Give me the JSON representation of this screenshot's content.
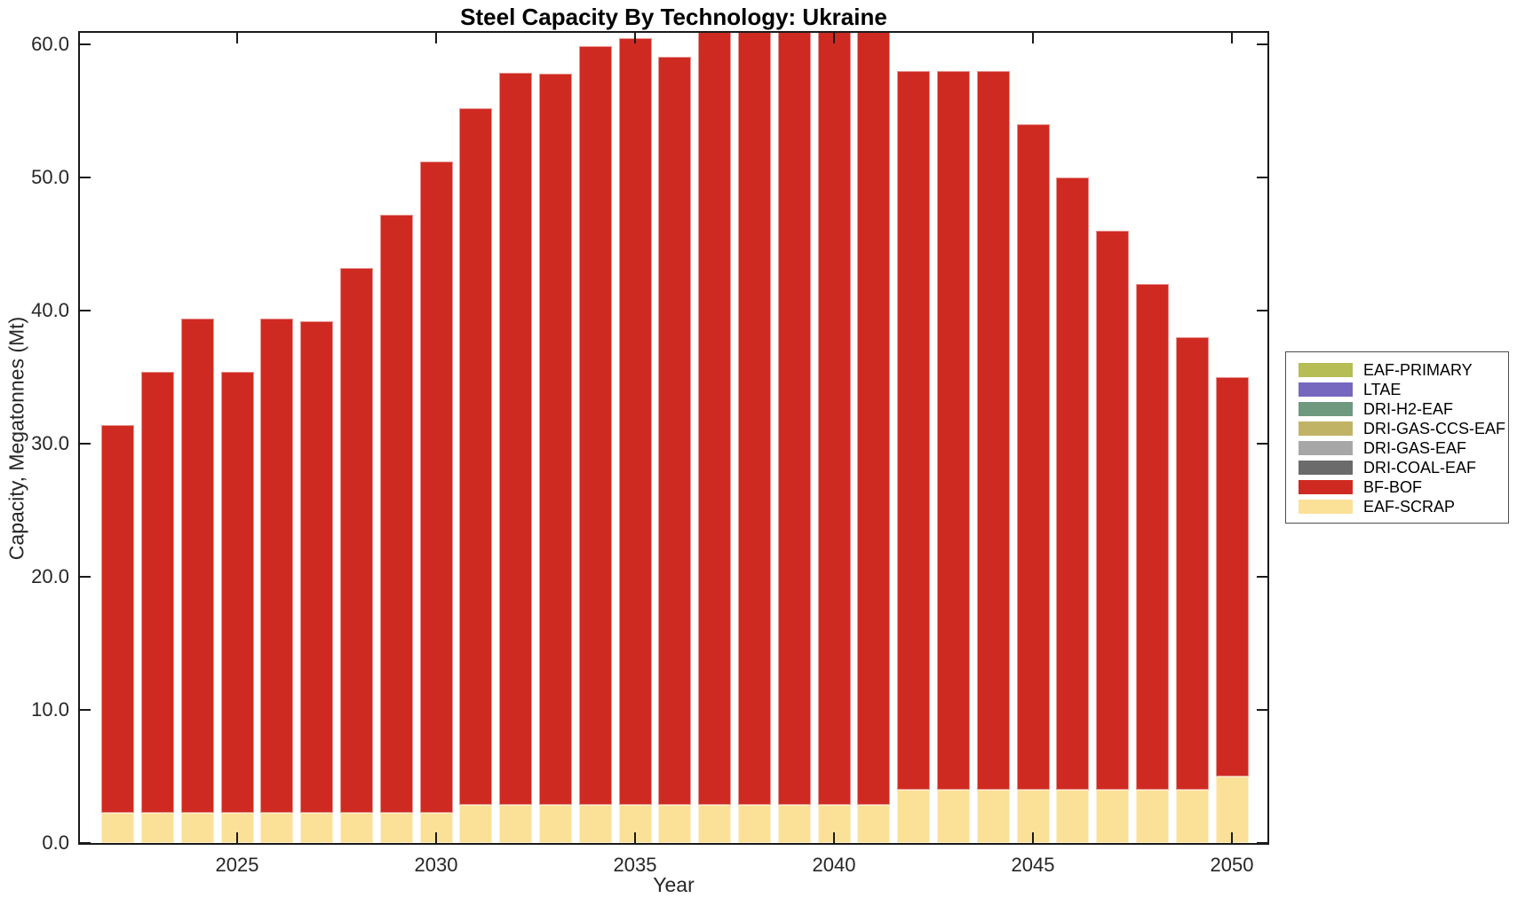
{
  "chart_data": {
    "type": "bar",
    "stacked": true,
    "title": "Steel Capacity By Technology: Ukraine",
    "xlabel": "Year",
    "ylabel": "Capacity, Megatonnes (Mt)",
    "grid": false,
    "legend_position": "outside-right",
    "stack_note": "series listed in legend order top-to-bottom; bars stack in reverse order (EAF-SCRAP bottom, BF-BOF above it)",
    "x": [
      2022,
      2023,
      2024,
      2025,
      2026,
      2027,
      2028,
      2029,
      2030,
      2031,
      2032,
      2033,
      2034,
      2035,
      2036,
      2037,
      2038,
      2039,
      2040,
      2041,
      2042,
      2043,
      2044,
      2045,
      2046,
      2047,
      2048,
      2049,
      2050
    ],
    "x_ticks": [
      "2025",
      "2030",
      "2035",
      "2040",
      "2045",
      "2050"
    ],
    "y_ticks": [
      "0.0",
      "10.0",
      "20.0",
      "30.0",
      "40.0",
      "50.0",
      "60.0"
    ],
    "y_tick_values": [
      0,
      10,
      20,
      30,
      40,
      50,
      60
    ],
    "ylim": [
      0,
      61.13
    ],
    "axis_color": "#262626",
    "series": [
      {
        "name": "EAF-PRIMARY",
        "color": "#b6bd55",
        "values": [
          0,
          0,
          0,
          0,
          0,
          0,
          0,
          0,
          0,
          0,
          0,
          0,
          0,
          0,
          0,
          0,
          0,
          0,
          0,
          0,
          0,
          0,
          0,
          0,
          0,
          0,
          0,
          0,
          0
        ]
      },
      {
        "name": "LTAE",
        "color": "#7668bf",
        "values": [
          0,
          0,
          0,
          0,
          0,
          0,
          0,
          0,
          0,
          0,
          0,
          0,
          0,
          0,
          0,
          0,
          0,
          0,
          0,
          0,
          0,
          0,
          0,
          0,
          0,
          0,
          0,
          0,
          0
        ]
      },
      {
        "name": "DRI-H2-EAF",
        "color": "#6e997e",
        "values": [
          0,
          0,
          0,
          0,
          0,
          0,
          0,
          0,
          0,
          0,
          0,
          0,
          0,
          0,
          0,
          0,
          0,
          0,
          0,
          0,
          0,
          0,
          0,
          0,
          0,
          0,
          0,
          0,
          0
        ]
      },
      {
        "name": "DRI-GAS-CCS-EAF",
        "color": "#c1b365",
        "values": [
          0,
          0,
          0,
          0,
          0,
          0,
          0,
          0,
          0,
          0,
          0,
          0,
          0,
          0,
          0,
          0,
          0,
          0,
          0,
          0,
          0,
          0,
          0,
          0,
          0,
          0,
          0,
          0,
          0
        ]
      },
      {
        "name": "DRI-GAS-EAF",
        "color": "#a7a7a7",
        "values": [
          0,
          0,
          0,
          0,
          0,
          0,
          0,
          0,
          0,
          0,
          0,
          0,
          0,
          0,
          0,
          0,
          0,
          0,
          0,
          0,
          0,
          0,
          0,
          0,
          0,
          0,
          0,
          0,
          0
        ]
      },
      {
        "name": "DRI-COAL-EAF",
        "color": "#6b6b6b",
        "values": [
          0,
          0,
          0,
          0,
          0,
          0,
          0,
          0,
          0,
          0,
          0,
          0,
          0,
          0,
          0,
          0,
          0,
          0,
          0,
          0,
          0,
          0,
          0,
          0,
          0,
          0,
          0,
          0,
          0
        ]
      },
      {
        "name": "BF-BOF",
        "color": "#cf2a21",
        "values": [
          29.1,
          33.1,
          37.1,
          33.1,
          37.1,
          36.9,
          40.9,
          44.9,
          48.9,
          52.3,
          55.0,
          54.9,
          57.0,
          57.6,
          56.2,
          58.2,
          58.2,
          58.2,
          58.2,
          58.2,
          54.0,
          54.0,
          54.0,
          50.0,
          46.0,
          42.0,
          38.0,
          34.0,
          30.0
        ]
      },
      {
        "name": "EAF-SCRAP",
        "color": "#fbe198",
        "values": [
          2.3,
          2.3,
          2.3,
          2.3,
          2.3,
          2.3,
          2.3,
          2.3,
          2.3,
          2.9,
          2.9,
          2.9,
          2.9,
          2.9,
          2.9,
          2.9,
          2.9,
          2.9,
          2.9,
          2.9,
          4.0,
          4.0,
          4.0,
          4.0,
          4.0,
          4.0,
          4.0,
          4.0,
          5.0
        ]
      }
    ]
  }
}
